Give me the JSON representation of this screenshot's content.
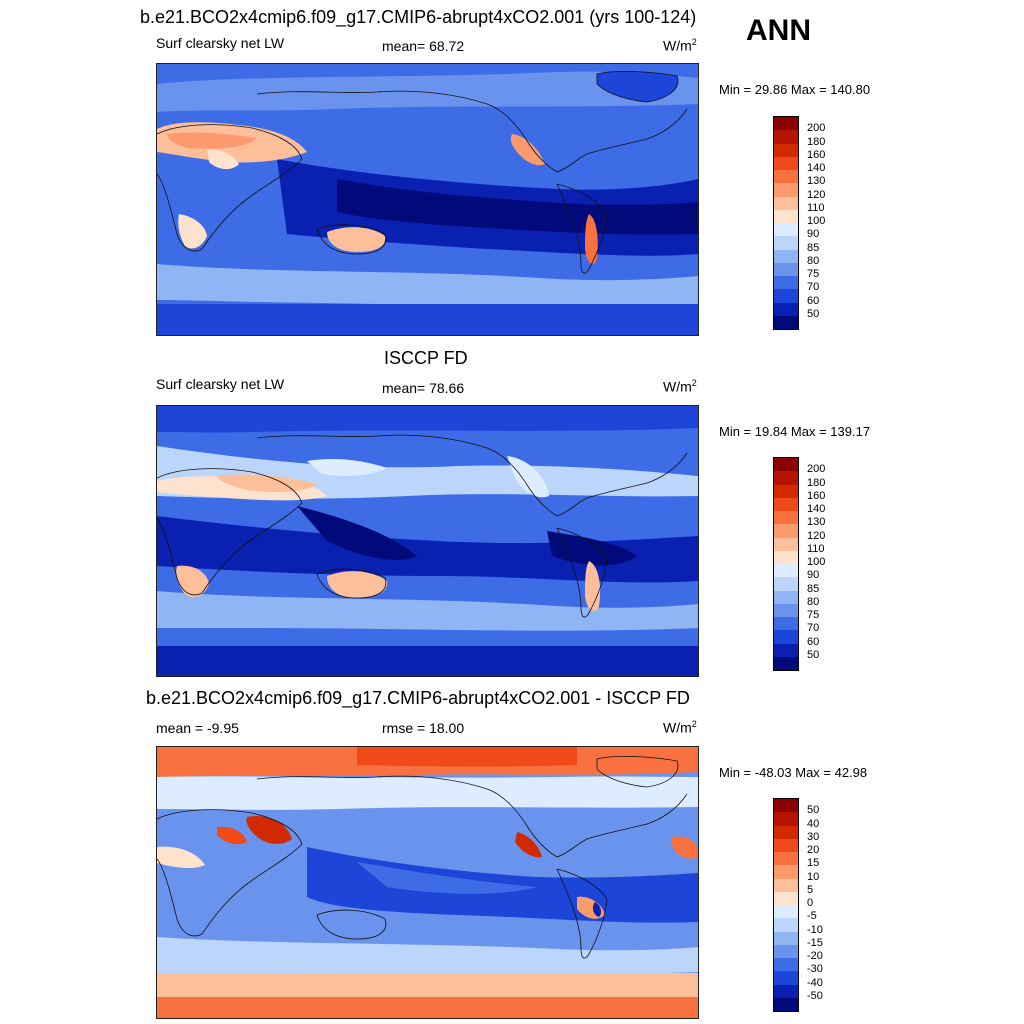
{
  "season": "ANN",
  "panels": [
    {
      "id": "model",
      "title": "b.e21.BCO2x4cmip6.f09_g17.CMIP6-abrupt4xCO2.001 (yrs 100-124)",
      "left_label": "Surf clearsky net LW",
      "center_label": "mean=  68.72",
      "units_base": "W/m",
      "units_exp": "2",
      "minmax": "Min =  29.86 Max = 140.80",
      "colorbar": {
        "levels": [
          "200",
          "180",
          "160",
          "140",
          "130",
          "120",
          "110",
          "100",
          "90",
          "85",
          "80",
          "75",
          "70",
          "60",
          "50"
        ],
        "colors": [
          "#8b0000",
          "#b41400",
          "#d22a00",
          "#ef4a17",
          "#f8713f",
          "#fb9a6d",
          "#fcbf9a",
          "#fde3cd",
          "#deecff",
          "#bcd6fb",
          "#8fb5f5",
          "#6a93ee",
          "#3d6ce6",
          "#1d45d8",
          "#0a20b0",
          "#000a7a"
        ]
      }
    },
    {
      "id": "obs",
      "title": "ISCCP FD",
      "left_label": "Surf clearsky net LW",
      "center_label": "mean=  78.66",
      "units_base": "W/m",
      "units_exp": "2",
      "minmax": "Min =  19.84 Max = 139.17",
      "colorbar": {
        "levels": [
          "200",
          "180",
          "160",
          "140",
          "130",
          "120",
          "110",
          "100",
          "90",
          "85",
          "80",
          "75",
          "70",
          "60",
          "50"
        ],
        "colors": [
          "#8b0000",
          "#b41400",
          "#d22a00",
          "#ef4a17",
          "#f8713f",
          "#fb9a6d",
          "#fcbf9a",
          "#fde3cd",
          "#deecff",
          "#bcd6fb",
          "#8fb5f5",
          "#6a93ee",
          "#3d6ce6",
          "#1d45d8",
          "#0a20b0",
          "#000a7a"
        ]
      }
    },
    {
      "id": "diff",
      "title": "b.e21.BCO2x4cmip6.f09_g17.CMIP6-abrupt4xCO2.001 - ISCCP FD",
      "left_label": "mean =  -9.95",
      "center_label": "rmse =  18.00",
      "units_base": "W/m",
      "units_exp": "2",
      "minmax": "Min = -48.03 Max =  42.98",
      "colorbar": {
        "levels": [
          "50",
          "40",
          "30",
          "20",
          "15",
          "10",
          "5",
          "0",
          "-5",
          "-10",
          "-15",
          "-20",
          "-30",
          "-40",
          "-50"
        ],
        "colors": [
          "#8b0000",
          "#b41400",
          "#d22a00",
          "#ef4a17",
          "#f8713f",
          "#fb9a6d",
          "#fcbf9a",
          "#fde3cd",
          "#deecff",
          "#bcd6fb",
          "#8fb5f5",
          "#6a93ee",
          "#3d6ce6",
          "#1d45d8",
          "#0a20b0",
          "#000a7a"
        ]
      }
    }
  ]
}
